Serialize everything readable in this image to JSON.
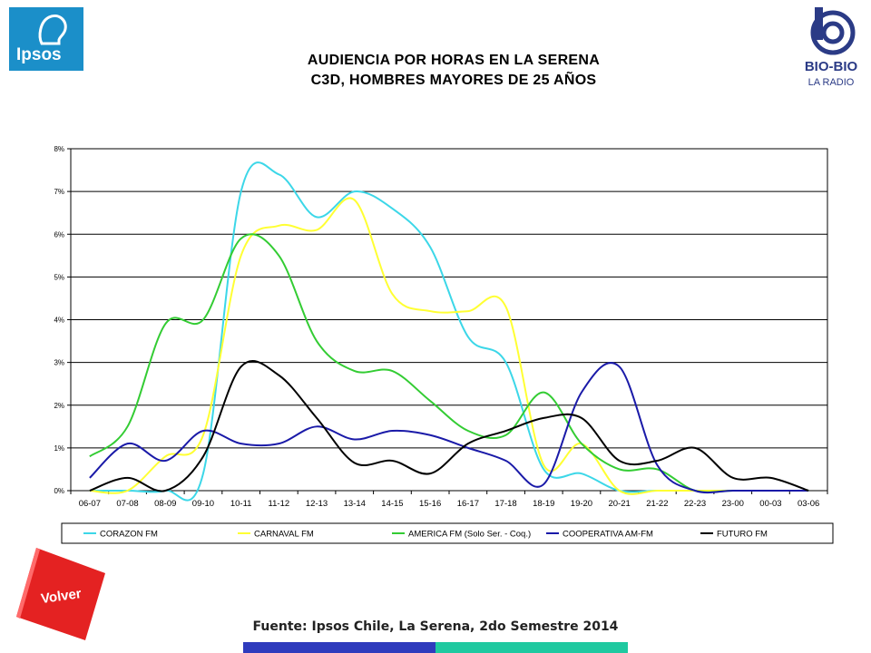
{
  "header": {
    "title_line1": "AUDIENCIA POR HORAS EN LA SERENA",
    "title_line2": "C3D, HOMBRES MAYORES DE 25 AÑOS"
  },
  "logos": {
    "left": {
      "text": "Ipsos",
      "color": "#1b8fc9"
    },
    "right": {
      "line1": "BIO-BIO",
      "line2": "LA RADIO",
      "color": "#2b3b86"
    }
  },
  "volver_button": {
    "label": "Volver",
    "color": "#e42222"
  },
  "footer": {
    "source": "Fuente: Ipsos Chile, La Serena, 2do Semestre 2014",
    "bar_colors": [
      "#2f3bbd",
      "#1fc9a0"
    ]
  },
  "chart_data": {
    "type": "line",
    "title": "",
    "xlabel": "",
    "ylabel": "",
    "ylim": [
      0,
      8
    ],
    "yticks": [
      "0%",
      "1%",
      "2%",
      "3%",
      "4%",
      "5%",
      "6%",
      "7%",
      "8%"
    ],
    "grid": "horizontal",
    "legend_position": "bottom",
    "categories": [
      "06-07",
      "07-08",
      "08-09",
      "09-10",
      "10-11",
      "11-12",
      "12-13",
      "13-14",
      "14-15",
      "15-16",
      "16-17",
      "17-18",
      "18-19",
      "19-20",
      "20-21",
      "21-22",
      "22-23",
      "23-00",
      "00-03",
      "03-06"
    ],
    "series": [
      {
        "name": "CORAZON FM",
        "color": "#3cd7e8",
        "values": [
          0.0,
          0.0,
          0.0,
          0.4,
          7.0,
          7.4,
          6.4,
          7.0,
          6.6,
          5.7,
          3.6,
          3.0,
          0.5,
          0.4,
          0.0,
          0.0,
          0.0,
          0.0,
          0.0,
          0.0
        ]
      },
      {
        "name": "CARNAVAL FM",
        "color": "#ffff33",
        "values": [
          0.0,
          0.0,
          0.8,
          1.3,
          5.5,
          6.2,
          6.1,
          6.8,
          4.6,
          4.2,
          4.2,
          4.3,
          0.6,
          1.1,
          0.0,
          0.0,
          0.0,
          0.0,
          0.0,
          0.0
        ]
      },
      {
        "name": "AMERICA FM  (Solo Ser. - Coq.)",
        "color": "#33cc33",
        "values": [
          0.8,
          1.5,
          3.9,
          4.0,
          5.9,
          5.5,
          3.5,
          2.8,
          2.8,
          2.1,
          1.4,
          1.3,
          2.3,
          1.1,
          0.5,
          0.5,
          0.0,
          0.0,
          0.0,
          0.0
        ]
      },
      {
        "name": "COOPERATIVA AM-FM",
        "color": "#1a1aa8",
        "values": [
          0.3,
          1.1,
          0.7,
          1.4,
          1.1,
          1.1,
          1.5,
          1.2,
          1.4,
          1.3,
          1.0,
          0.7,
          0.15,
          2.3,
          2.9,
          0.6,
          0.0,
          0.0,
          0.0,
          0.0
        ]
      },
      {
        "name": "FUTURO FM",
        "color": "#000000",
        "values": [
          0.0,
          0.3,
          0.0,
          0.8,
          2.9,
          2.7,
          1.7,
          0.65,
          0.7,
          0.4,
          1.1,
          1.4,
          1.7,
          1.7,
          0.7,
          0.7,
          1.0,
          0.3,
          0.3,
          0.0
        ]
      }
    ]
  }
}
